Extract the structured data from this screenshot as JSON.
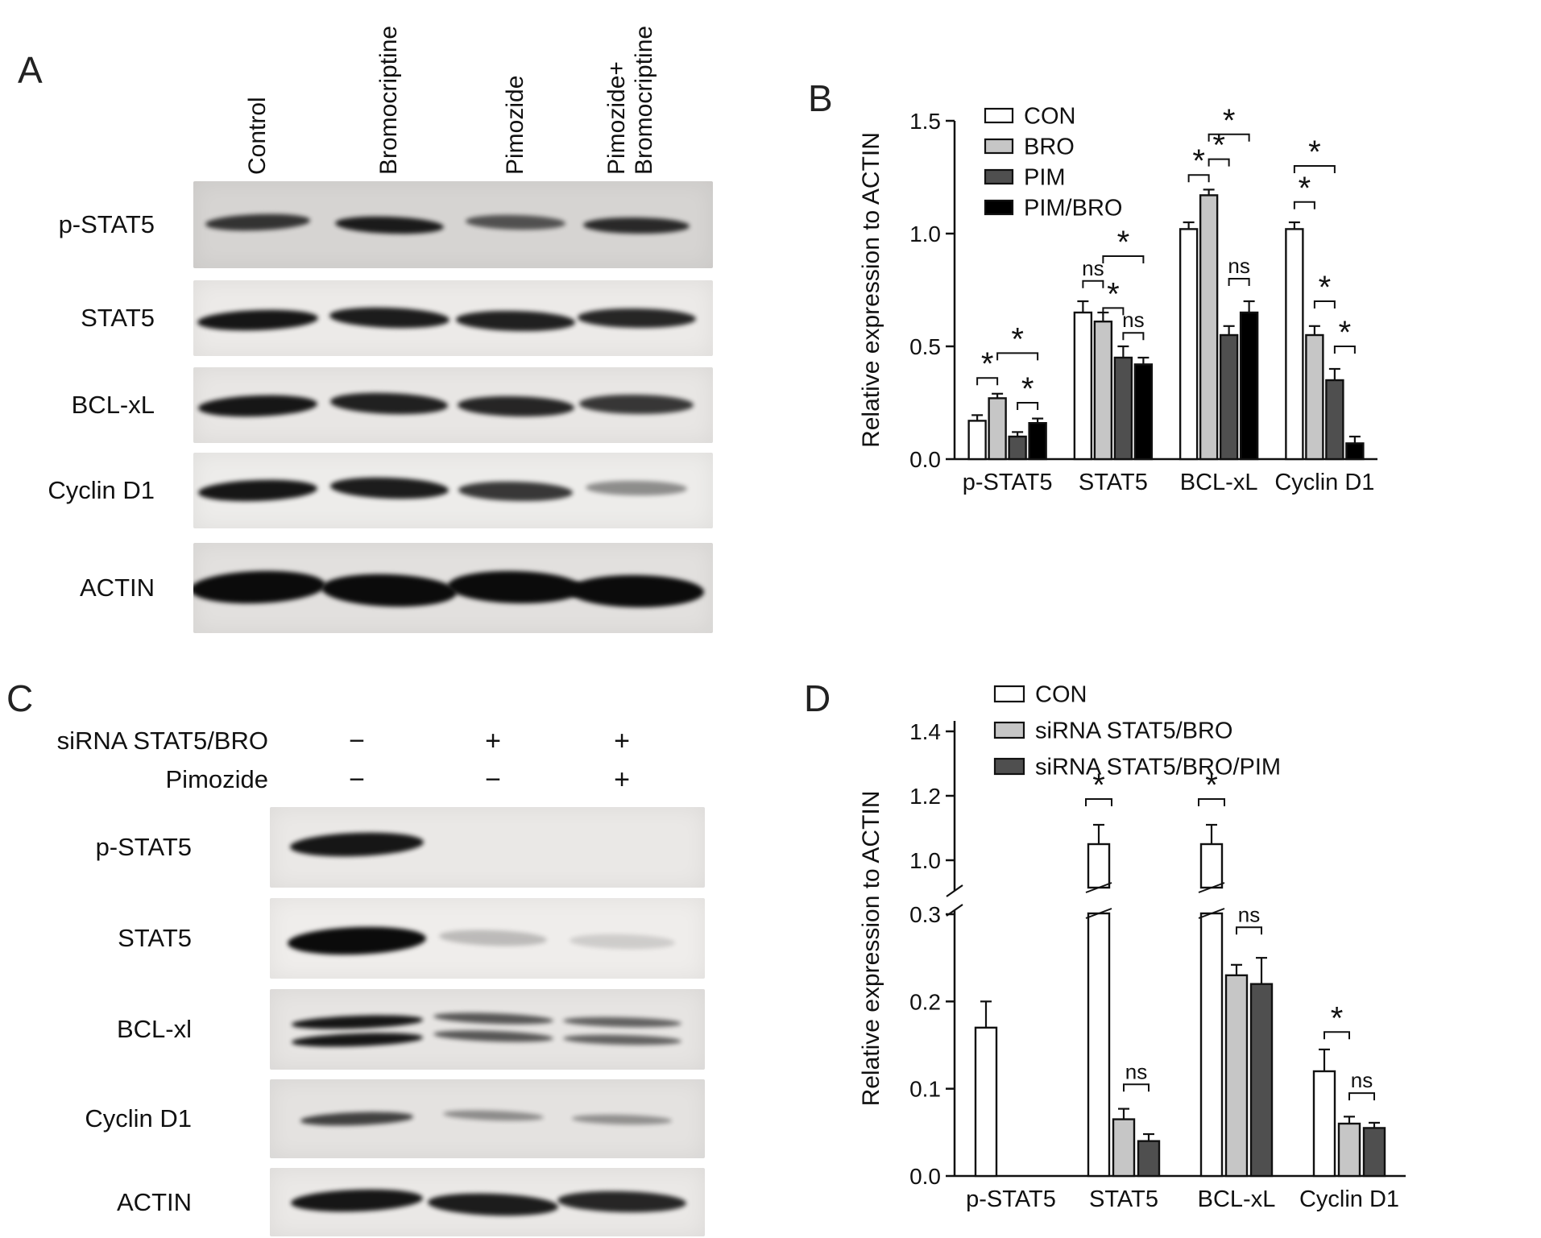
{
  "panels": {
    "A": "A",
    "B": "B",
    "C": "C",
    "D": "D"
  },
  "panelA": {
    "lane_labels": [
      [
        "Control"
      ],
      [
        "Bromocriptine"
      ],
      [
        "Pimozide"
      ],
      [
        "Pimozide+",
        "Bromocriptine"
      ]
    ],
    "rows": [
      {
        "label": "p-STAT5",
        "bg": "#d6d4d2",
        "bandH": 22,
        "bandW": 138,
        "bands": [
          0.8,
          0.92,
          0.65,
          0.85
        ]
      },
      {
        "label": "STAT5",
        "bg": "#eceae8",
        "bandH": 26,
        "bandW": 152,
        "bands": [
          0.95,
          0.92,
          0.9,
          0.88
        ]
      },
      {
        "label": "BCL-xL",
        "bg": "#e8e6e4",
        "bandH": 27,
        "bandW": 150,
        "bands": [
          0.95,
          0.9,
          0.88,
          0.8
        ]
      },
      {
        "label": "Cyclin D1",
        "bg": "#edecea",
        "bandH": 27,
        "bandW": 150,
        "bands": [
          0.95,
          0.92,
          0.8,
          0.42
        ]
      },
      {
        "label": "ACTIN",
        "bg": "#e2e0de",
        "bandH": 40,
        "bandW": 168,
        "bands": [
          1,
          1,
          1,
          1
        ]
      }
    ]
  },
  "panelC": {
    "conditions": [
      {
        "label": "siRNA STAT5/BRO",
        "values": [
          "−",
          "+",
          "+"
        ]
      },
      {
        "label": "Pimozide",
        "values": [
          "−",
          "−",
          "+"
        ]
      }
    ],
    "rows": [
      {
        "label": "p-STAT5",
        "bg": "#eae8e6",
        "bandH": 30,
        "bandW": 168,
        "bands": [
          0.95,
          0,
          0
        ]
      },
      {
        "label": "STAT5",
        "bg": "#efedeb",
        "bandH": 34,
        "bandW": 172,
        "bands": [
          1,
          0.22,
          0.14
        ]
      },
      {
        "label": "BCL-xl",
        "bg": "#e6e4e2",
        "bandH": 16,
        "bandW": 165,
        "double": true,
        "bands": [
          0.95,
          0.65,
          0.6
        ]
      },
      {
        "label": "Cyclin D1",
        "bg": "#e4e2e0",
        "bandH": 18,
        "bandW": 150,
        "bands": [
          0.75,
          0.4,
          0.38
        ]
      },
      {
        "label": "ACTIN",
        "bg": "#eae8e6",
        "bandH": 28,
        "bandW": 166,
        "bands": [
          0.95,
          0.92,
          0.88
        ]
      }
    ]
  },
  "chart_data": [
    {
      "id": "B",
      "type": "bar",
      "title": "",
      "xlabel": "",
      "ylabel": "Relative expression to ACTIN",
      "ylim": [
        0,
        1.5
      ],
      "yticks": [
        "0.0",
        "0.5",
        "1.0",
        "1.5"
      ],
      "categories": [
        "p-STAT5",
        "STAT5",
        "BCL-xL",
        "Cyclin D1"
      ],
      "legend_position": "top-left",
      "series": [
        {
          "name": "CON",
          "color": "#ffffff",
          "values": [
            0.17,
            0.65,
            1.02,
            1.02
          ],
          "errors": [
            0.025,
            0.05,
            0.03,
            0.03
          ]
        },
        {
          "name": "BRO",
          "color": "#c6c6c6",
          "values": [
            0.27,
            0.61,
            1.17,
            0.55
          ],
          "errors": [
            0.02,
            0.04,
            0.025,
            0.04
          ]
        },
        {
          "name": "PIM",
          "color": "#4f4f4f",
          "values": [
            0.1,
            0.45,
            0.55,
            0.35
          ],
          "errors": [
            0.02,
            0.05,
            0.04,
            0.05
          ]
        },
        {
          "name": "PIM/BRO",
          "color": "#000000",
          "values": [
            0.16,
            0.42,
            0.65,
            0.07
          ],
          "errors": [
            0.02,
            0.03,
            0.05,
            0.03
          ]
        }
      ],
      "annotations": [
        {
          "group": 0,
          "from": 0,
          "to": 1,
          "label": "*",
          "y": 0.36
        },
        {
          "group": 0,
          "from": 1,
          "to": 3,
          "label": "*",
          "y": 0.47
        },
        {
          "group": 0,
          "from": 2,
          "to": 3,
          "label": "*",
          "y": 0.25
        },
        {
          "group": 1,
          "from": 0,
          "to": 1,
          "label": "ns",
          "y": 0.79
        },
        {
          "group": 1,
          "from": 1,
          "to": 3,
          "label": "*",
          "y": 0.9
        },
        {
          "group": 1,
          "from": 1,
          "to": 2,
          "label": "*",
          "y": 0.67
        },
        {
          "group": 1,
          "from": 2,
          "to": 3,
          "label": "ns",
          "y": 0.56
        },
        {
          "group": 2,
          "from": 0,
          "to": 1,
          "label": "*",
          "y": 1.26
        },
        {
          "group": 2,
          "from": 1,
          "to": 2,
          "label": "*",
          "y": 1.33
        },
        {
          "group": 2,
          "from": 1,
          "to": 3,
          "label": "*",
          "y": 1.44
        },
        {
          "group": 2,
          "from": 2,
          "to": 3,
          "label": "ns",
          "y": 0.8
        },
        {
          "group": 3,
          "from": 0,
          "to": 1,
          "label": "*",
          "y": 1.14
        },
        {
          "group": 3,
          "from": 0,
          "to": 2,
          "label": "*",
          "y": 1.3
        },
        {
          "group": 3,
          "from": 1,
          "to": 2,
          "label": "*",
          "y": 0.7
        },
        {
          "group": 3,
          "from": 2,
          "to": 3,
          "label": "*",
          "y": 0.5
        }
      ]
    },
    {
      "id": "D",
      "type": "bar",
      "title": "",
      "xlabel": "",
      "ylabel": "Relative expression to ACTIN",
      "axis_break": {
        "lower_max": 0.3,
        "upper_min": 1.0,
        "upper_max": 1.45
      },
      "yticks_lower": [
        "0.0",
        "0.1",
        "0.2",
        "0.3"
      ],
      "yticks_upper": [
        "1.0",
        "1.2",
        "1.4"
      ],
      "categories": [
        "p-STAT5",
        "STAT5",
        "BCL-xL",
        "Cyclin D1"
      ],
      "legend_position": "top",
      "series": [
        {
          "name": "CON",
          "color": "#ffffff",
          "values": [
            0.17,
            1.05,
            1.05,
            0.12
          ],
          "errors": [
            0.03,
            0.06,
            0.06,
            0.025
          ]
        },
        {
          "name": "siRNA STAT5/BRO",
          "color": "#c6c6c6",
          "values": [
            0,
            0.065,
            0.23,
            0.06
          ],
          "errors": [
            0,
            0.012,
            0.012,
            0.008
          ]
        },
        {
          "name": "siRNA STAT5/BRO/PIM",
          "color": "#4f4f4f",
          "values": [
            0,
            0.04,
            0.22,
            0.055
          ],
          "errors": [
            0,
            0.008,
            0.03,
            0.006
          ]
        }
      ],
      "annotations": [
        {
          "group": 1,
          "from": 0,
          "to": 0,
          "label": "*",
          "y": 1.19
        },
        {
          "group": 1,
          "from": 1,
          "to": 2,
          "label": "ns",
          "y": 0.105
        },
        {
          "group": 2,
          "from": 0,
          "to": 0,
          "label": "*",
          "y": 1.19
        },
        {
          "group": 2,
          "from": 1,
          "to": 2,
          "label": "ns",
          "y": 0.285
        },
        {
          "group": 3,
          "from": 0,
          "to": 1,
          "label": "*",
          "y": 0.165
        },
        {
          "group": 3,
          "from": 1,
          "to": 2,
          "label": "ns",
          "y": 0.095
        }
      ]
    }
  ]
}
